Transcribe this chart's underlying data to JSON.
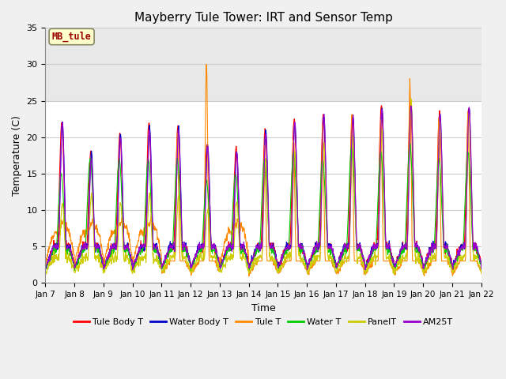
{
  "title": "Mayberry Tule Tower: IRT and Sensor Temp",
  "xlabel": "Time",
  "ylabel": "Temperature (C)",
  "ylim": [
    0,
    35
  ],
  "xlim": [
    0,
    360
  ],
  "background_color": "#f0f0f0",
  "plot_bg_color": "#ffffff",
  "shaded_band": [
    25,
    35
  ],
  "shaded_band_color": "#e8e8e8",
  "label_box_text": "MB_tule",
  "label_box_color": "#ffffcc",
  "label_box_edge": "#999900",
  "series_colors": {
    "Tule Body T": "#ff0000",
    "Water Body T": "#0000cc",
    "Tule T": "#ff8800",
    "Water T": "#00cc00",
    "PanelT": "#cccc00",
    "AM25T": "#9900cc"
  },
  "x_tick_labels": [
    "Jan 7",
    "Jan 8",
    "Jan 9",
    "Jan 10",
    "Jan 11",
    "Jan 12",
    "Jan 13",
    "Jan 14",
    "Jan 15",
    "Jan 16",
    "Jan 17",
    "Jan 18",
    "Jan 19",
    "Jan 20",
    "Jan 21",
    "Jan 22"
  ],
  "x_tick_positions": [
    0,
    24,
    48,
    72,
    96,
    120,
    144,
    168,
    192,
    216,
    240,
    264,
    288,
    312,
    336,
    360
  ],
  "y_ticks": [
    0,
    5,
    10,
    15,
    20,
    25,
    30,
    35
  ],
  "grid_color": "#e0e0e0",
  "title_fontsize": 11,
  "figsize": [
    6.4,
    4.8
  ],
  "dpi": 100
}
